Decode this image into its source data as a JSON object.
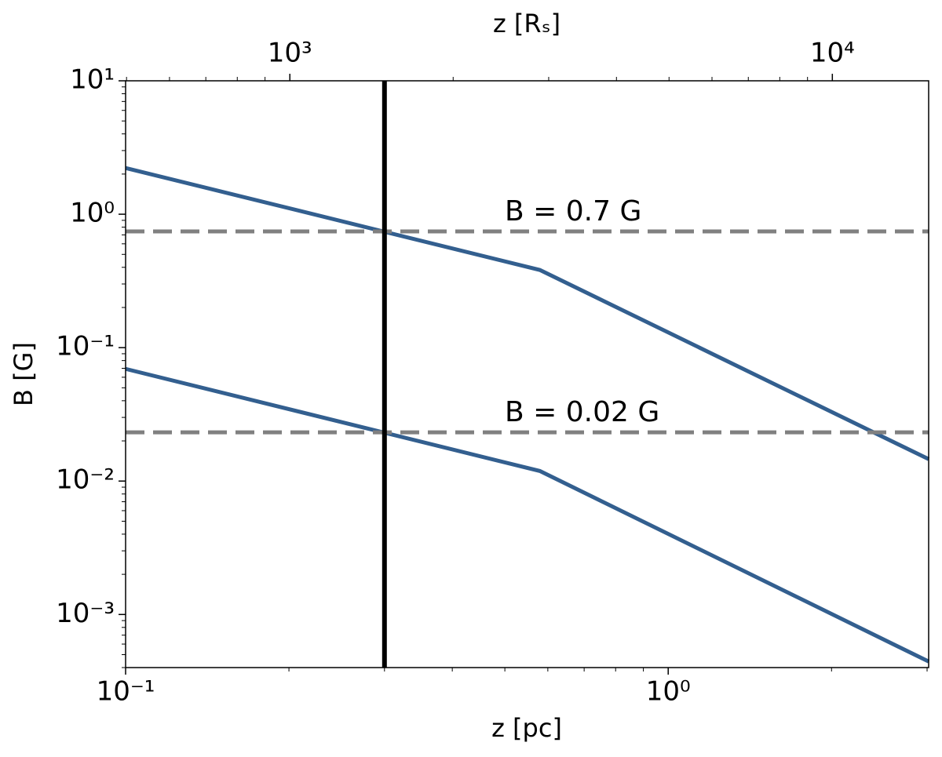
{
  "chart_data": {
    "type": "line",
    "xlabel": "z [pc]",
    "ylabel": "B [G]",
    "x2label": "z [Rₛ]",
    "xscale": "log",
    "yscale": "log",
    "xlim": [
      0.1,
      3.02
    ],
    "ylim": [
      0.0004,
      10
    ],
    "x2lim": [
      498,
      15050
    ],
    "xticks": [
      {
        "value": 0.1,
        "label": "10⁻¹"
      },
      {
        "value": 1,
        "label": "10⁰"
      }
    ],
    "x2ticks": [
      {
        "value": 1000,
        "label": "10³"
      },
      {
        "value": 10000,
        "label": "10⁴"
      }
    ],
    "yticks": [
      {
        "value": 0.001,
        "label": "10⁻³"
      },
      {
        "value": 0.01,
        "label": "10⁻²"
      },
      {
        "value": 0.1,
        "label": "10⁻¹"
      },
      {
        "value": 1,
        "label": "10⁰"
      },
      {
        "value": 10,
        "label": "10¹"
      }
    ],
    "x": [
      0.1,
      0.58,
      3.02
    ],
    "series": [
      {
        "color": "#335f8f",
        "values": [
          2.22,
          0.382,
          0.0146
        ]
      },
      {
        "color": "#335f8f",
        "values": [
          0.0693,
          0.0119,
          0.000444
        ]
      }
    ],
    "hlines": [
      {
        "value": 0.743,
        "label": "B = 0.7 G",
        "color": "#808080"
      },
      {
        "value": 0.0232,
        "label": "B = 0.02 G",
        "color": "#808080"
      }
    ],
    "vlines": [
      {
        "value": 0.3,
        "color": "#000000"
      }
    ]
  }
}
